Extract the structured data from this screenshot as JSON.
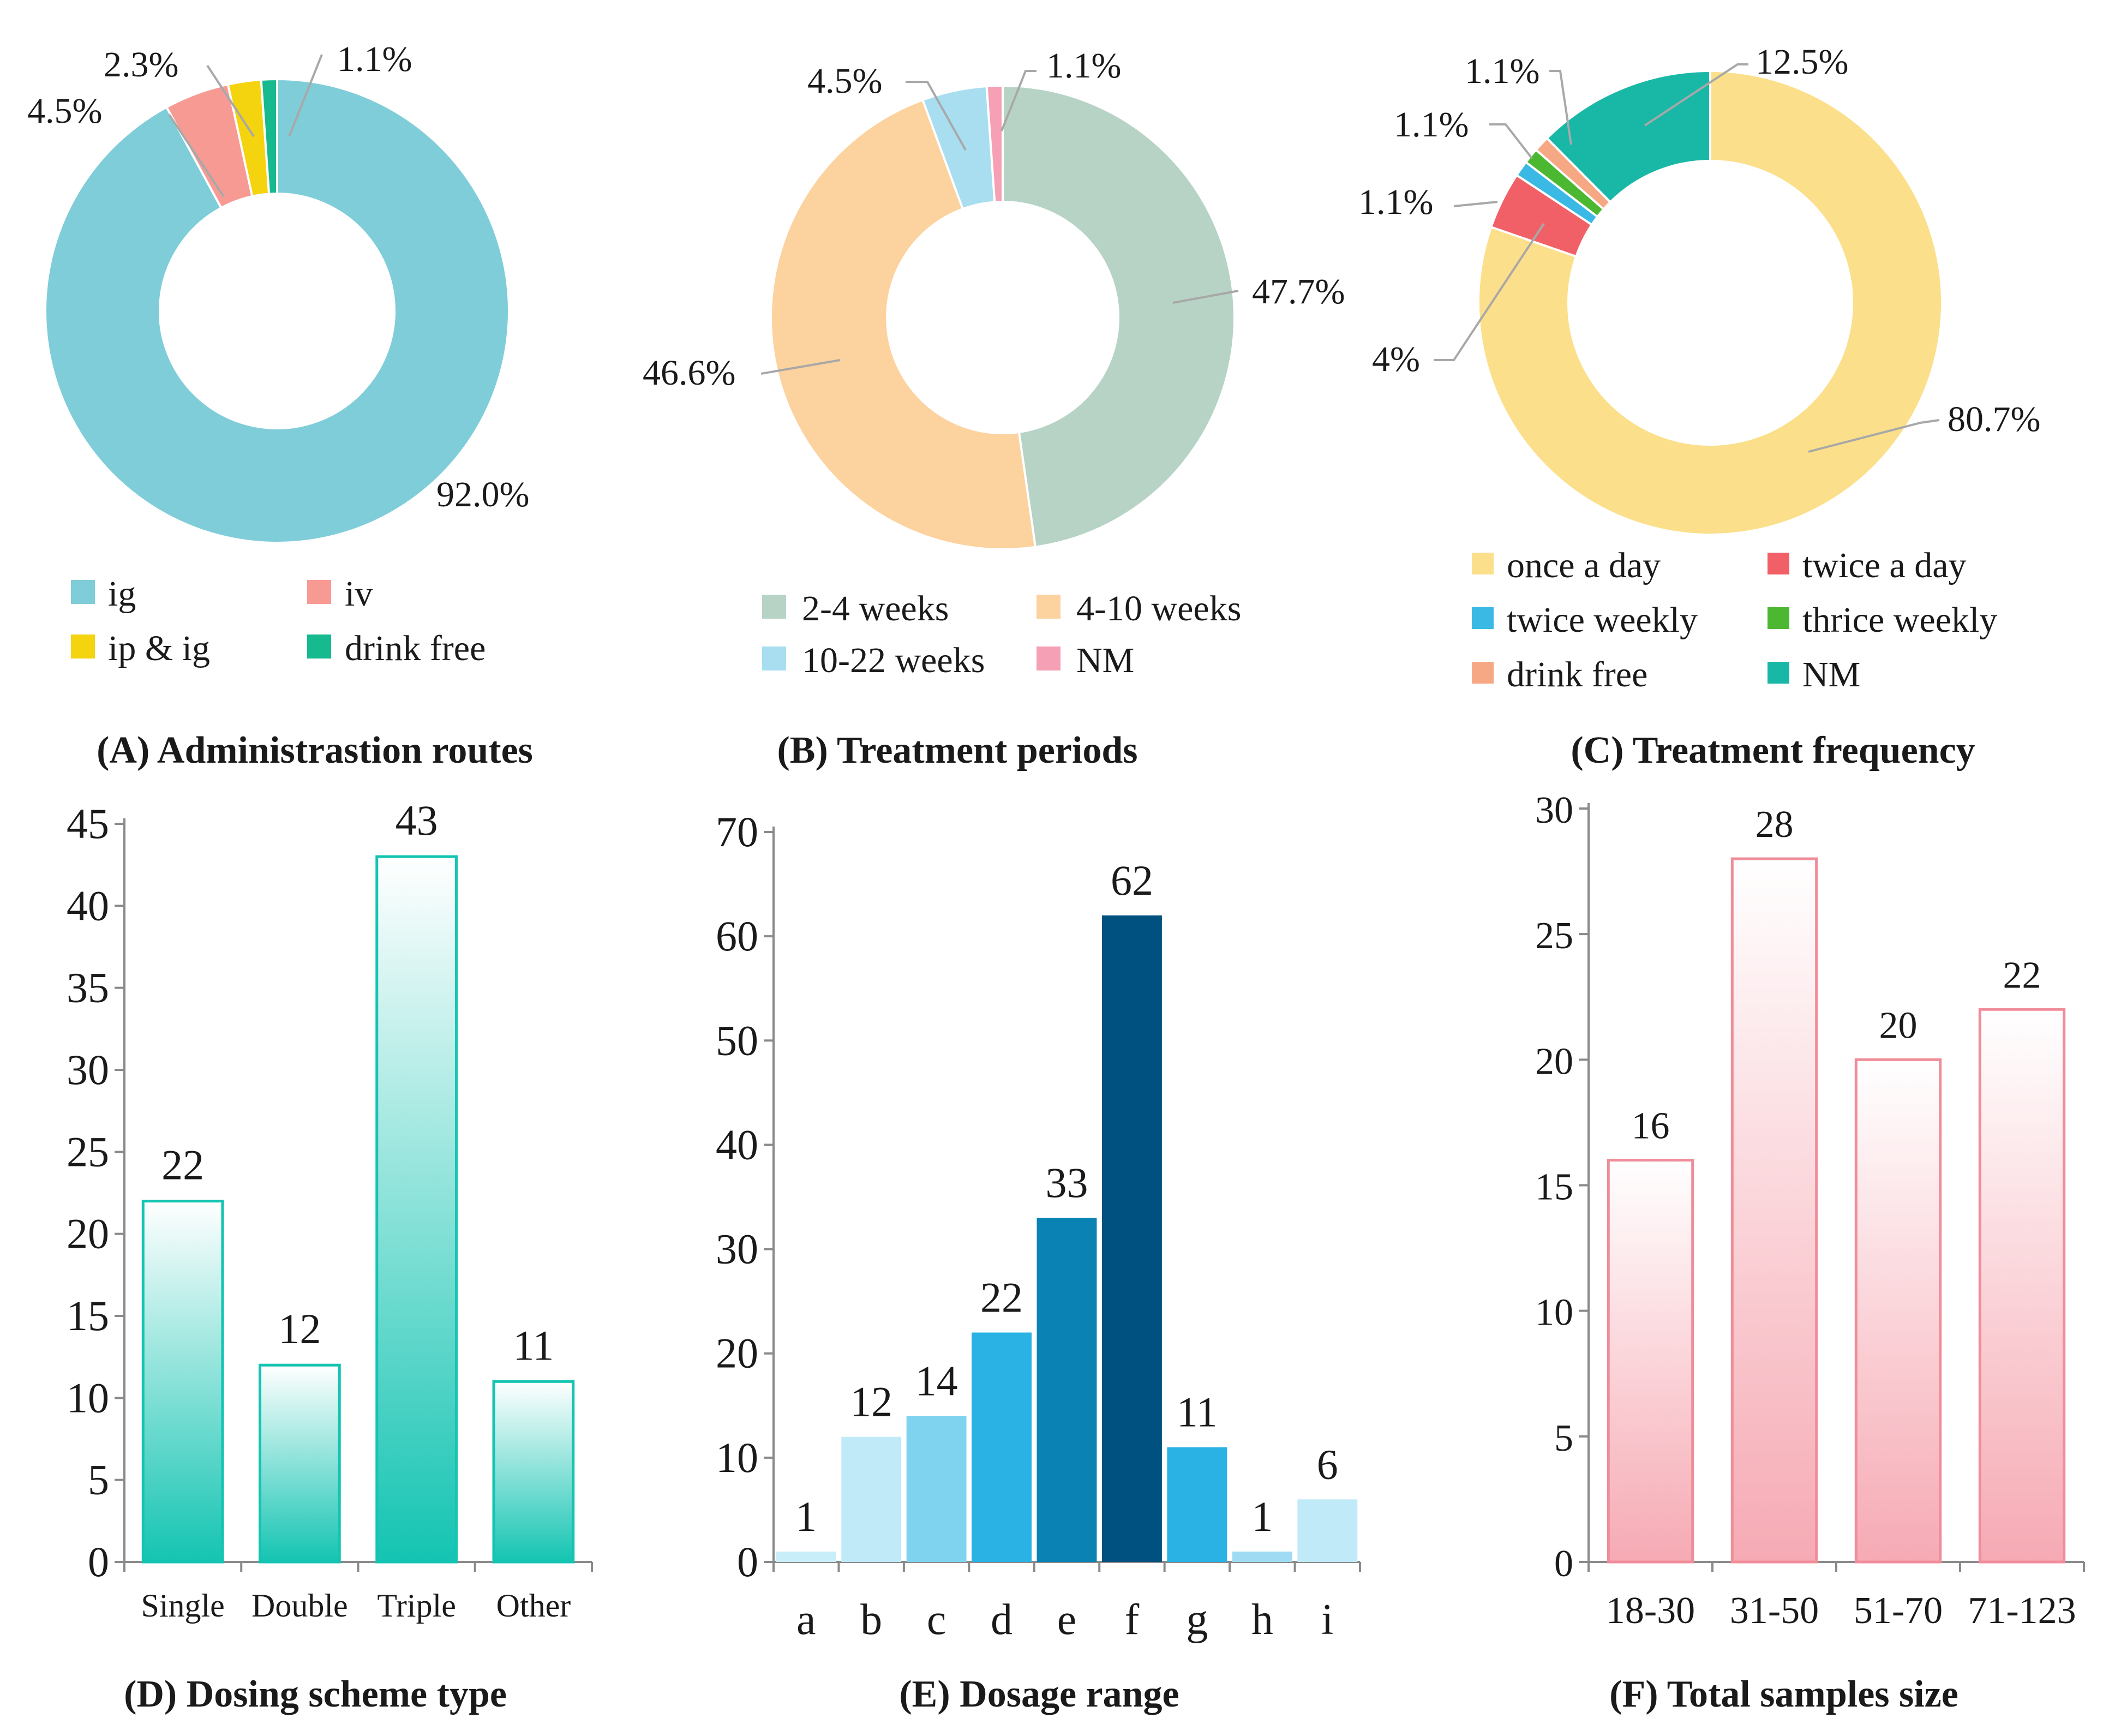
{
  "chart_data": [
    {
      "id": "A",
      "type": "pie",
      "title": "(A) Administrastion routes",
      "slices": [
        {
          "name": "ig",
          "value": 92.0,
          "label": "92.0%",
          "color": "#7fcdd8"
        },
        {
          "name": "iv",
          "value": 4.5,
          "label": "4.5%",
          "color": "#f79a93"
        },
        {
          "name": "ip & ig",
          "value": 2.3,
          "label": "2.3%",
          "color": "#f4d30f"
        },
        {
          "name": "drink free",
          "value": 1.1,
          "label": "1.1%",
          "color": "#17b98f"
        }
      ]
    },
    {
      "id": "B",
      "type": "pie",
      "title": "(B) Treatment periods",
      "slices": [
        {
          "name": "2-4 weeks",
          "value": 47.7,
          "label": "47.7%",
          "color": "#b7d3c6"
        },
        {
          "name": "4-10 weeks",
          "value": 46.6,
          "label": "46.6%",
          "color": "#fcd29e"
        },
        {
          "name": "10-22 weeks",
          "value": 4.5,
          "label": "4.5%",
          "color": "#a8def0"
        },
        {
          "name": "NM",
          "value": 1.1,
          "label": "1.1%",
          "color": "#f5a0b4"
        }
      ]
    },
    {
      "id": "C",
      "type": "pie",
      "title": "(C) Treatment frequency",
      "slices": [
        {
          "name": "once a day",
          "value": 80.7,
          "label": "80.7%",
          "color": "#fbdf8a"
        },
        {
          "name": "twice a day",
          "value": 4,
          "label": "4%",
          "color": "#f26067"
        },
        {
          "name": "twice weekly",
          "value": 1.1,
          "label": "1.1%",
          "color": "#3ab9e4"
        },
        {
          "name": "thrice weekly",
          "value": 1.1,
          "label": "1.1%",
          "color": "#4cb832"
        },
        {
          "name": "drink free",
          "value": 1.1,
          "label": "1.1%",
          "color": "#f6a884"
        },
        {
          "name": "NM",
          "value": 12.5,
          "label": "12.5%",
          "color": "#19b8a6"
        }
      ]
    },
    {
      "id": "D",
      "type": "bar",
      "title": "(D) Dosing scheme type",
      "categories": [
        "Single",
        "Double",
        "Triple",
        "Other"
      ],
      "values": [
        22,
        12,
        43,
        11
      ],
      "ylim": [
        0,
        45
      ],
      "yticks": [
        0,
        5,
        10,
        15,
        20,
        25,
        30,
        35,
        40,
        45
      ],
      "color": "#14c4b2"
    },
    {
      "id": "E",
      "type": "bar",
      "title": "(E) Dosage range",
      "categories": [
        "a",
        "b",
        "c",
        "d",
        "e",
        "f",
        "g",
        "h",
        "i"
      ],
      "values": [
        1,
        12,
        14,
        22,
        33,
        62,
        11,
        1,
        6
      ],
      "ylim": [
        0,
        70
      ],
      "yticks": [
        0,
        10,
        20,
        30,
        40,
        50,
        60,
        70
      ],
      "colors": [
        "#c8eef9",
        "#c0eaf8",
        "#7fd3ef",
        "#29b2e3",
        "#0a82b4",
        "#00517f",
        "#29b2e3",
        "#9fdcf3",
        "#c0eaf8"
      ]
    },
    {
      "id": "F",
      "type": "bar",
      "title": "(F) Total samples size",
      "categories": [
        "18-30",
        "31-50",
        "51-70",
        "71-123"
      ],
      "values": [
        16,
        28,
        20,
        22
      ],
      "ylim": [
        0,
        30
      ],
      "yticks": [
        0,
        5,
        10,
        15,
        20,
        25,
        30
      ],
      "color": "#f4a4af"
    }
  ]
}
